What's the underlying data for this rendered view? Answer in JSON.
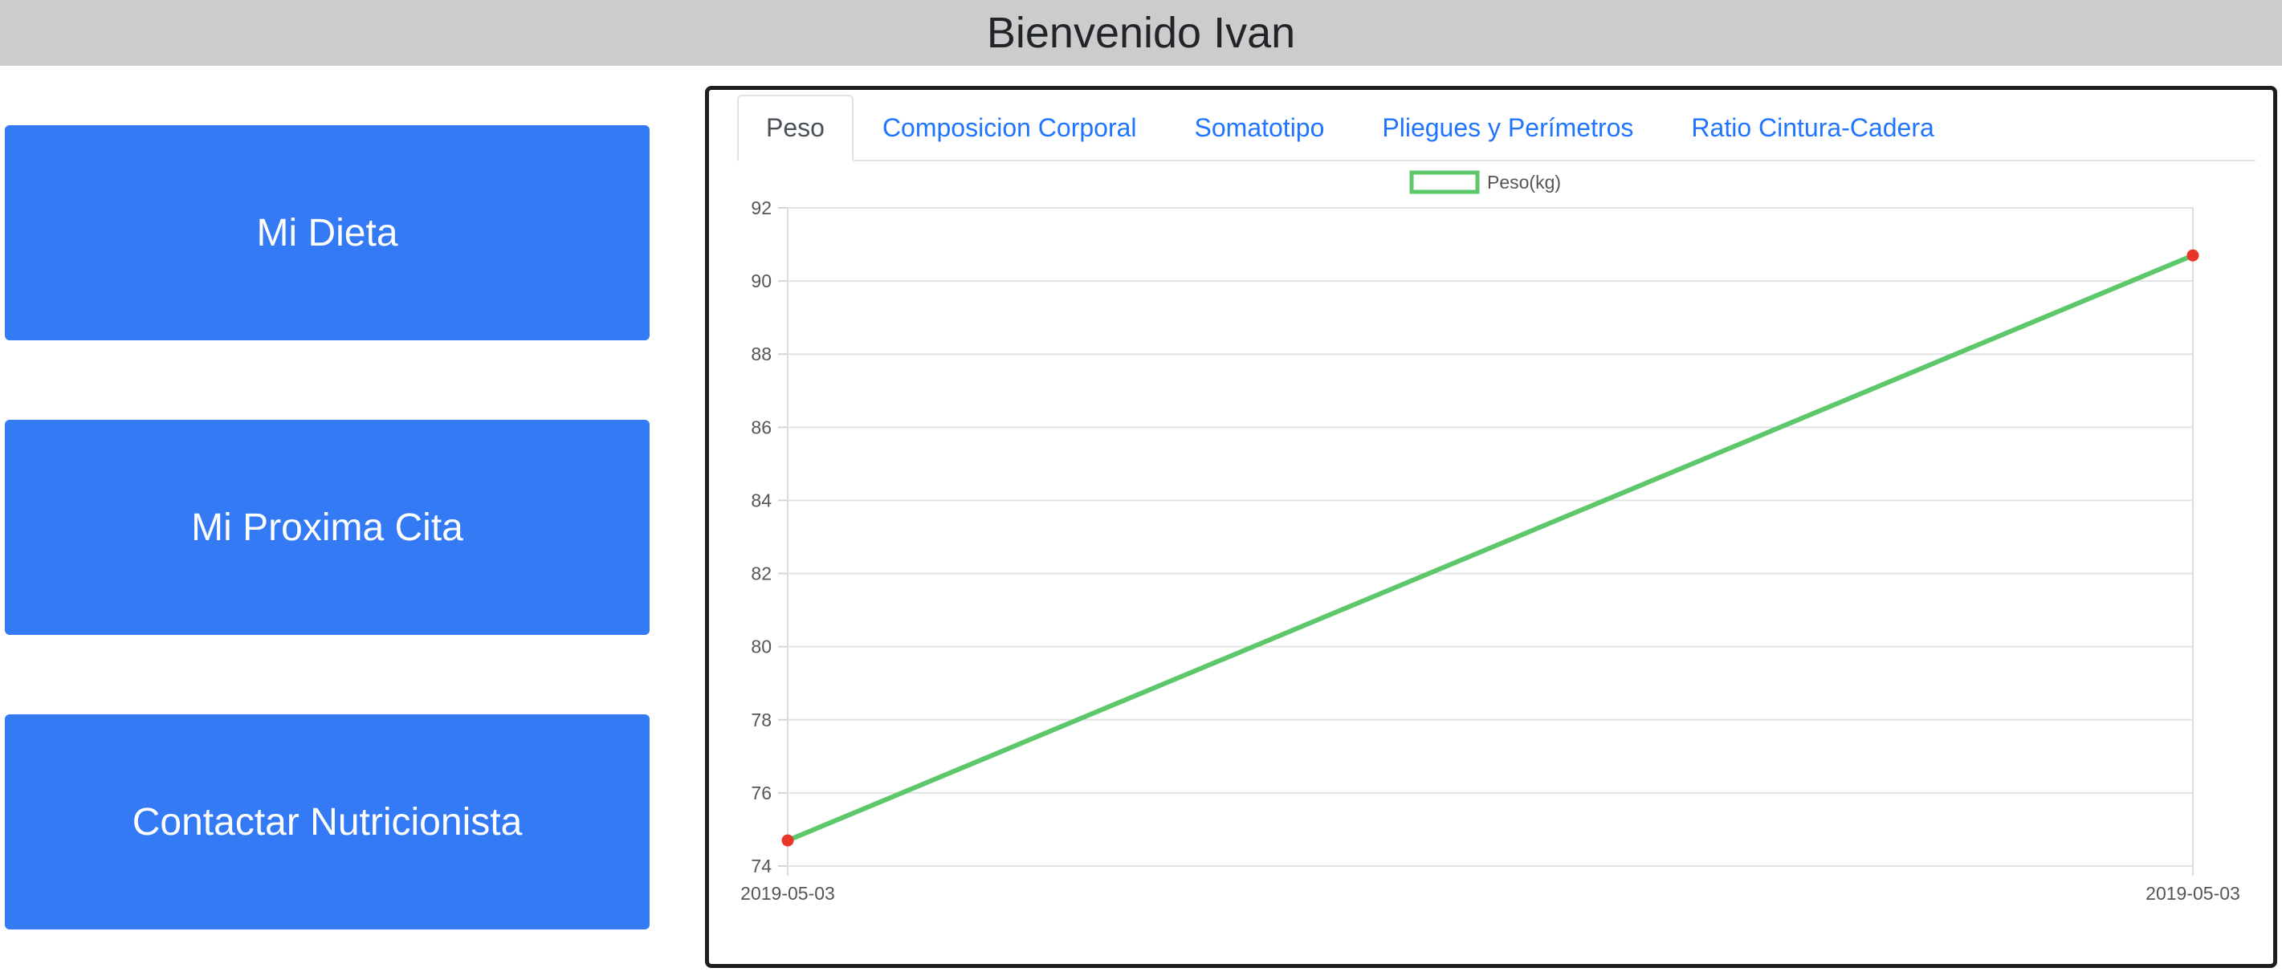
{
  "header": {
    "title": "Bienvenido Ivan"
  },
  "sidebar": {
    "buttons": [
      {
        "label": "Mi Dieta"
      },
      {
        "label": "Mi Proxima Cita"
      },
      {
        "label": "Contactar Nutricionista"
      }
    ]
  },
  "tabs": [
    {
      "label": "Peso",
      "active": true
    },
    {
      "label": "Composicion Corporal"
    },
    {
      "label": "Somatotipo"
    },
    {
      "label": "Pliegues y Perímetros"
    },
    {
      "label": "Ratio Cintura-Cadera"
    }
  ],
  "colors": {
    "accent": "#347af5",
    "link": "#1f75fe",
    "line": "#5dc86a",
    "point": "#e8372a",
    "header_bg": "#cccccc"
  },
  "chart_data": {
    "type": "line",
    "categories": [
      "2019-05-03",
      "2019-05-03"
    ],
    "series": [
      {
        "name": "Peso(kg)",
        "values": [
          74.7,
          90.7
        ],
        "color": "#5dc86a",
        "point_color": "#e8372a"
      }
    ],
    "ylim": [
      74,
      92
    ],
    "yticks": [
      74,
      76,
      78,
      80,
      82,
      84,
      86,
      88,
      90,
      92
    ],
    "legend_position": "top-center",
    "grid": true
  }
}
